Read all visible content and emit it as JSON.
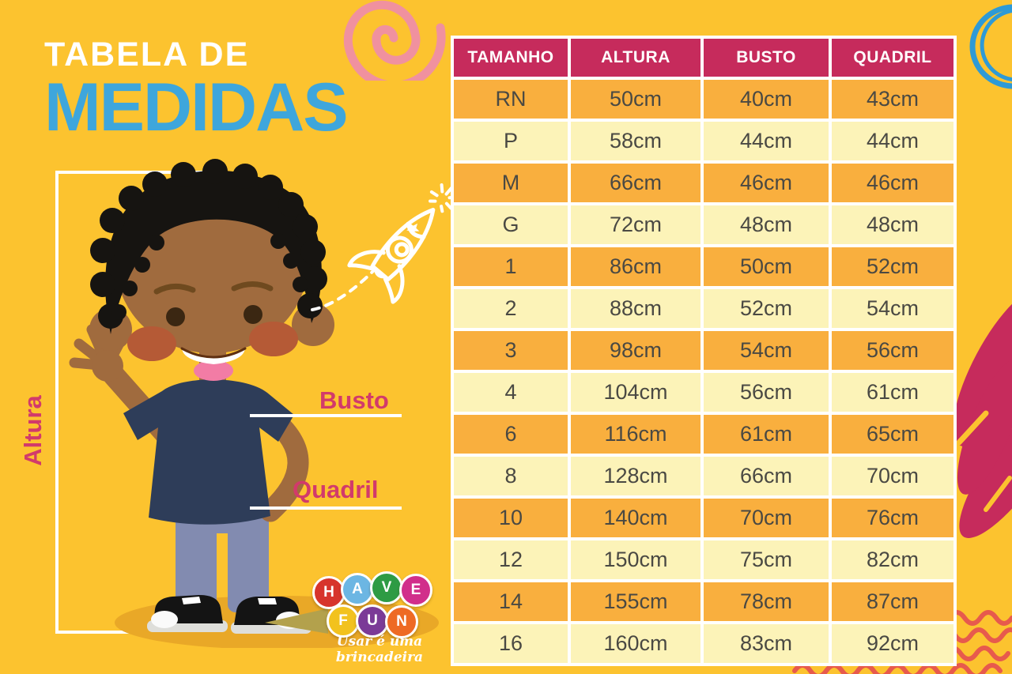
{
  "title": {
    "line1": "TABELA DE",
    "line2": "MEDIDAS"
  },
  "measure_labels": {
    "altura": "Altura",
    "busto": "Busto",
    "quadril": "Quadril"
  },
  "table": {
    "headers": [
      "TAMANHO",
      "ALTURA",
      "BUSTO",
      "QUADRIL"
    ],
    "rows": [
      [
        "RN",
        "50cm",
        "40cm",
        "43cm"
      ],
      [
        "P",
        "58cm",
        "44cm",
        "44cm"
      ],
      [
        "M",
        "66cm",
        "46cm",
        "46cm"
      ],
      [
        "G",
        "72cm",
        "48cm",
        "48cm"
      ],
      [
        "1",
        "86cm",
        "50cm",
        "52cm"
      ],
      [
        "2",
        "88cm",
        "52cm",
        "54cm"
      ],
      [
        "3",
        "98cm",
        "54cm",
        "56cm"
      ],
      [
        "4",
        "104cm",
        "56cm",
        "61cm"
      ],
      [
        "6",
        "116cm",
        "61cm",
        "65cm"
      ],
      [
        "8",
        "128cm",
        "66cm",
        "70cm"
      ],
      [
        "10",
        "140cm",
        "70cm",
        "76cm"
      ],
      [
        "12",
        "150cm",
        "75cm",
        "82cm"
      ],
      [
        "14",
        "155cm",
        "78cm",
        "87cm"
      ],
      [
        "16",
        "160cm",
        "83cm",
        "92cm"
      ]
    ]
  },
  "chart_data": {
    "type": "table",
    "title": "Tabela de Medidas",
    "columns": [
      "TAMANHO",
      "ALTURA",
      "BUSTO",
      "QUADRIL"
    ],
    "categories": [
      "RN",
      "P",
      "M",
      "G",
      "1",
      "2",
      "3",
      "4",
      "6",
      "8",
      "10",
      "12",
      "14",
      "16"
    ],
    "series": [
      {
        "name": "ALTURA",
        "unit": "cm",
        "values": [
          50,
          58,
          66,
          72,
          86,
          88,
          98,
          104,
          116,
          128,
          140,
          150,
          155,
          160
        ]
      },
      {
        "name": "BUSTO",
        "unit": "cm",
        "values": [
          40,
          44,
          46,
          48,
          50,
          52,
          54,
          56,
          61,
          66,
          70,
          75,
          78,
          83
        ]
      },
      {
        "name": "QUADRIL",
        "unit": "cm",
        "values": [
          43,
          44,
          46,
          48,
          52,
          54,
          56,
          61,
          65,
          70,
          76,
          82,
          87,
          92
        ]
      }
    ]
  },
  "logo": {
    "word1": "HAVE",
    "word2": "FUN",
    "letters": [
      {
        "char": "H",
        "color": "#D7342C"
      },
      {
        "char": "A",
        "color": "#6CB6E3"
      },
      {
        "char": "V",
        "color": "#2E9B44"
      },
      {
        "char": "E",
        "color": "#D12F8B"
      },
      {
        "char": "F",
        "color": "#F2C21E"
      },
      {
        "char": "U",
        "color": "#7B3A97"
      },
      {
        "char": "N",
        "color": "#EE6A24"
      }
    ],
    "tagline": "Usar é uma brincadeira"
  },
  "palette": {
    "background": "#FCC32F",
    "table_header": "#C62B5C",
    "row_orange": "#F9AF3E",
    "row_cream": "#FCF3B8",
    "cell_text": "#4A4943",
    "title_blue": "#3EA6DC",
    "label_pink": "#D23A6B",
    "wave_coral": "#E75A4D",
    "petal_magenta": "#C62B5C",
    "spiral_pink": "#F0919F",
    "scribble_blue": "#2E9AD6",
    "white": "#FFFFFF"
  },
  "decorations": [
    "pink-spiral",
    "blue-scribble-circle",
    "rocket-doodle",
    "magenta-petals",
    "coral-waves",
    "boy-illustration",
    "measure-bracket",
    "have-fun-logo"
  ]
}
